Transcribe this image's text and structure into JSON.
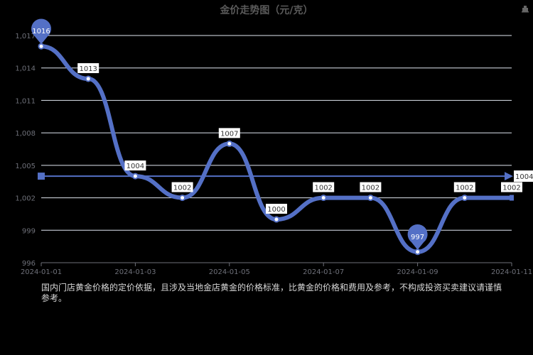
{
  "title": "金价走势图（元/克）",
  "toolbar": {
    "save_icon": "save-as-image-icon"
  },
  "note": "国内门店黄金价格的定价依据，且涉及当地金店黄金的价格标准，比黄金的价格和费用及参考，不构成投资买卖建议请谨慎参考。",
  "colors": {
    "line": "#5470c6",
    "gridline": "#e0e6f1",
    "axis_text": "#6e7079",
    "label_text": "#333333",
    "background": "#000000"
  },
  "chart_data": {
    "type": "line",
    "title": "金价走势图",
    "smooth": true,
    "x": [
      "2024-01-01",
      "2024-01-02",
      "2024-01-03",
      "2024-01-04",
      "2024-01-05",
      "2024-01-06",
      "2024-01-07",
      "2024-01-08",
      "2024-01-09",
      "2024-01-10",
      "2024-01-11"
    ],
    "x_tick_labels": [
      "2024-01-01",
      "2024-01-03",
      "2024-01-05",
      "2024-01-07",
      "2024-01-09",
      "2024-01-11"
    ],
    "series": [
      {
        "name": "金价",
        "values": [
          1016,
          1013,
          1004,
          1002,
          1007,
          1000,
          1002,
          1002,
          997,
          1002,
          1002
        ]
      }
    ],
    "y_ticks": [
      "996",
      "999",
      "1,002",
      "1,005",
      "1,008",
      "1,011",
      "1,014",
      "1,017"
    ],
    "ylim": [
      996,
      1017
    ],
    "mark_points": [
      {
        "type": "max",
        "value": 1016,
        "index": 0
      },
      {
        "type": "min",
        "value": 997,
        "index": 8
      }
    ],
    "mark_line": {
      "type": "average",
      "value": 1004
    },
    "grid": true,
    "legend": "none"
  }
}
